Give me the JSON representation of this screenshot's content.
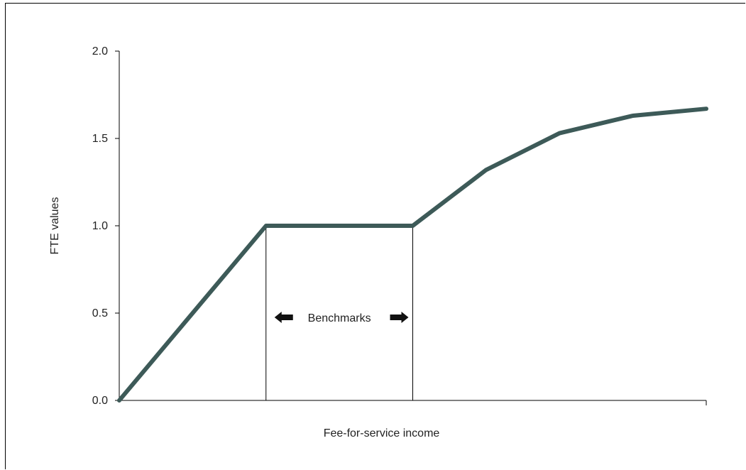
{
  "chart_data": {
    "type": "line",
    "title": "",
    "xlabel": "Fee-for-service income",
    "ylabel": "FTE values",
    "ylim": [
      0,
      2
    ],
    "y_ticks": [
      "0.0",
      "0.5",
      "1.0",
      "1.5",
      "2.0"
    ],
    "x_ticks_shown": false,
    "xlim": [
      0,
      8
    ],
    "series": [
      {
        "values": [
          {
            "x": 0,
            "y": 0.0
          },
          {
            "x": 2,
            "y": 1.0
          },
          {
            "x": 4,
            "y": 1.0
          },
          {
            "x": 5,
            "y": 1.32
          },
          {
            "x": 6,
            "y": 1.53
          },
          {
            "x": 7,
            "y": 1.63
          },
          {
            "x": 8,
            "y": 1.67
          }
        ],
        "color": "#3d5a58"
      }
    ],
    "annotation": {
      "text": "Benchmarks",
      "x_range": [
        2,
        4
      ],
      "y": 0.5
    },
    "grid": false,
    "legend": "none"
  }
}
